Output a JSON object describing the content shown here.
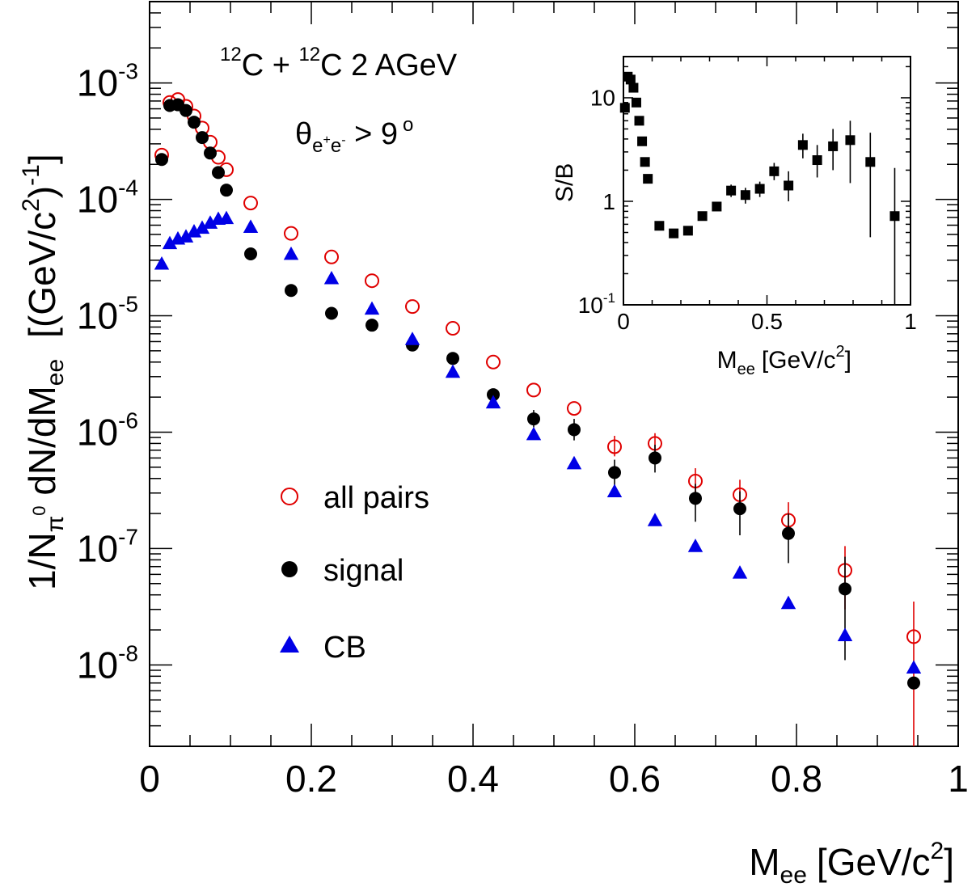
{
  "chart_data": [
    {
      "type": "scatter",
      "xlabel_main": "M",
      "xlabel_sub": "ee",
      "xlabel_unit": "[GeV/c",
      "xlabel_sup": "2",
      "xlabel_end": "]",
      "ylabel_prefix": "1/N",
      "ylabel_sub1": "π",
      "ylabel_sup1": "0",
      "ylabel_mid": " dN/dM",
      "ylabel_sub2": "ee",
      "ylabel_unit": "[(GeV/c",
      "ylabel_sup2": "2",
      "ylabel_unit_mid": ")",
      "ylabel_sup3": "-1",
      "ylabel_end": "]",
      "xlim": [
        0,
        1
      ],
      "ylim": [
        2e-09,
        0.005
      ],
      "yscale": "log",
      "x_ticks": [
        "0",
        "0.2",
        "0.4",
        "0.6",
        "0.8",
        "1"
      ],
      "y_ticks": [
        {
          "base": "10",
          "exp": "-3",
          "value": 0.001
        },
        {
          "base": "10",
          "exp": "-4",
          "value": 0.0001
        },
        {
          "base": "10",
          "exp": "-5",
          "value": 1e-05
        },
        {
          "base": "10",
          "exp": "-6",
          "value": 1e-06
        },
        {
          "base": "10",
          "exp": "-7",
          "value": 1e-07
        },
        {
          "base": "10",
          "exp": "-8",
          "value": 1e-08
        }
      ],
      "annotation": {
        "sup_a": "12",
        "text_a": "C + ",
        "sup_b": "12",
        "text_b": "C  2 AGeV",
        "theta": "θ",
        "theta_sub": "e",
        "theta_sub_sup1": "+",
        "theta_sub_e": "e",
        "theta_sub_sup2": "-",
        "theta_rest": " > 9",
        "theta_deg": "o"
      },
      "legend": [
        {
          "label": "all pairs",
          "marker": "open-circle",
          "color": "#e00000"
        },
        {
          "label": "signal",
          "marker": "filled-circle",
          "color": "#000000"
        },
        {
          "label": "CB",
          "marker": "filled-triangle",
          "color": "#0000e6"
        }
      ],
      "series": [
        {
          "name": "all pairs",
          "marker": "open-circle",
          "color": "#e00000",
          "points": [
            {
              "x": 0.015,
              "y": 0.00024
            },
            {
              "x": 0.025,
              "y": 0.00068
            },
            {
              "x": 0.035,
              "y": 0.00072
            },
            {
              "x": 0.045,
              "y": 0.00063
            },
            {
              "x": 0.055,
              "y": 0.00052
            },
            {
              "x": 0.065,
              "y": 0.00041
            },
            {
              "x": 0.075,
              "y": 0.00031
            },
            {
              "x": 0.085,
              "y": 0.00023
            },
            {
              "x": 0.095,
              "y": 0.00018
            },
            {
              "x": 0.125,
              "y": 9.3e-05
            },
            {
              "x": 0.175,
              "y": 5.1e-05
            },
            {
              "x": 0.225,
              "y": 3.2e-05
            },
            {
              "x": 0.275,
              "y": 2e-05
            },
            {
              "x": 0.325,
              "y": 1.2e-05
            },
            {
              "x": 0.375,
              "y": 7.8e-06
            },
            {
              "x": 0.425,
              "y": 4e-06
            },
            {
              "x": 0.475,
              "y": 2.3e-06
            },
            {
              "x": 0.525,
              "y": 1.6e-06
            },
            {
              "x": 0.575,
              "y": 7.5e-07,
              "ylo": 6.2e-07,
              "yhi": 9.3e-07
            },
            {
              "x": 0.625,
              "y": 8e-07,
              "ylo": 6.6e-07,
              "yhi": 9.8e-07
            },
            {
              "x": 0.675,
              "y": 3.8e-07,
              "ylo": 2.9e-07,
              "yhi": 4.9e-07
            },
            {
              "x": 0.73,
              "y": 2.9e-07,
              "ylo": 2.1e-07,
              "yhi": 3.9e-07
            },
            {
              "x": 0.79,
              "y": 1.75e-07,
              "ylo": 1.2e-07,
              "yhi": 2.5e-07
            },
            {
              "x": 0.86,
              "y": 6.5e-08,
              "ylo": 3e-08,
              "yhi": 1.05e-07
            },
            {
              "x": 0.945,
              "y": 1.75e-08,
              "ylo": 2e-09,
              "yhi": 3.5e-08
            }
          ]
        },
        {
          "name": "signal",
          "marker": "filled-circle",
          "color": "#000000",
          "points": [
            {
              "x": 0.015,
              "y": 0.00022
            },
            {
              "x": 0.025,
              "y": 0.00064
            },
            {
              "x": 0.035,
              "y": 0.00065
            },
            {
              "x": 0.045,
              "y": 0.00058
            },
            {
              "x": 0.055,
              "y": 0.00046
            },
            {
              "x": 0.065,
              "y": 0.00034
            },
            {
              "x": 0.075,
              "y": 0.00025
            },
            {
              "x": 0.085,
              "y": 0.00017
            },
            {
              "x": 0.095,
              "y": 0.00012
            },
            {
              "x": 0.125,
              "y": 3.4e-05
            },
            {
              "x": 0.175,
              "y": 1.65e-05
            },
            {
              "x": 0.225,
              "y": 1.05e-05
            },
            {
              "x": 0.275,
              "y": 8.3e-06
            },
            {
              "x": 0.325,
              "y": 5.6e-06
            },
            {
              "x": 0.375,
              "y": 4.3e-06
            },
            {
              "x": 0.425,
              "y": 2.1e-06
            },
            {
              "x": 0.475,
              "y": 1.3e-06,
              "ylo": 1.1e-06,
              "yhi": 1.55e-06
            },
            {
              "x": 0.525,
              "y": 1.05e-06,
              "ylo": 8.5e-07,
              "yhi": 1.3e-06
            },
            {
              "x": 0.575,
              "y": 4.5e-07,
              "ylo": 3.4e-07,
              "yhi": 5.8e-07
            },
            {
              "x": 0.625,
              "y": 6e-07,
              "ylo": 4.5e-07,
              "yhi": 7.8e-07
            },
            {
              "x": 0.675,
              "y": 2.7e-07,
              "ylo": 1.7e-07,
              "yhi": 3.6e-07
            },
            {
              "x": 0.73,
              "y": 2.2e-07,
              "ylo": 1.3e-07,
              "yhi": 3.1e-07
            },
            {
              "x": 0.79,
              "y": 1.35e-07,
              "ylo": 7.5e-08,
              "yhi": 2e-07
            },
            {
              "x": 0.86,
              "y": 4.5e-08,
              "ylo": 1.1e-08,
              "yhi": 8.5e-08
            },
            {
              "x": 0.945,
              "y": 7e-09
            }
          ]
        },
        {
          "name": "CB",
          "marker": "filled-triangle",
          "color": "#0000e6",
          "points": [
            {
              "x": 0.015,
              "y": 2.8e-05
            },
            {
              "x": 0.025,
              "y": 4.2e-05
            },
            {
              "x": 0.035,
              "y": 4.6e-05
            },
            {
              "x": 0.045,
              "y": 4.8e-05
            },
            {
              "x": 0.055,
              "y": 5.3e-05
            },
            {
              "x": 0.065,
              "y": 5.7e-05
            },
            {
              "x": 0.075,
              "y": 6.3e-05
            },
            {
              "x": 0.085,
              "y": 6.8e-05
            },
            {
              "x": 0.095,
              "y": 6.9e-05
            },
            {
              "x": 0.125,
              "y": 5.8e-05
            },
            {
              "x": 0.175,
              "y": 3.4e-05
            },
            {
              "x": 0.225,
              "y": 2.1e-05
            },
            {
              "x": 0.275,
              "y": 1.15e-05
            },
            {
              "x": 0.325,
              "y": 6.3e-06
            },
            {
              "x": 0.375,
              "y": 3.3e-06
            },
            {
              "x": 0.425,
              "y": 1.8e-06
            },
            {
              "x": 0.475,
              "y": 9.6e-07
            },
            {
              "x": 0.525,
              "y": 5.4e-07
            },
            {
              "x": 0.575,
              "y": 3.1e-07
            },
            {
              "x": 0.625,
              "y": 1.75e-07
            },
            {
              "x": 0.675,
              "y": 1.05e-07
            },
            {
              "x": 0.73,
              "y": 6.2e-08
            },
            {
              "x": 0.79,
              "y": 3.4e-08
            },
            {
              "x": 0.86,
              "y": 1.8e-08
            },
            {
              "x": 0.945,
              "y": 9.5e-09
            }
          ]
        }
      ]
    },
    {
      "type": "scatter",
      "xlabel_main": "M",
      "xlabel_sub": "ee",
      "xlabel_unit": "[GeV/c",
      "xlabel_sup": "2",
      "xlabel_end": "]",
      "ylabel": "S/B",
      "xlim": [
        0,
        1
      ],
      "ylim": [
        0.1,
        25
      ],
      "yscale": "log",
      "x_ticks": [
        "0",
        "0.5",
        "1"
      ],
      "y_ticks": [
        {
          "label": "10",
          "value": 10
        },
        {
          "label": "1",
          "value": 1
        },
        {
          "base": "10",
          "exp": "-1",
          "value": 0.1
        }
      ],
      "series": [
        {
          "name": "S/B",
          "marker": "filled-square",
          "color": "#000000",
          "points": [
            {
              "x": 0.005,
              "y": 8.0
            },
            {
              "x": 0.015,
              "y": 16.0
            },
            {
              "x": 0.025,
              "y": 15.0
            },
            {
              "x": 0.035,
              "y": 12.5
            },
            {
              "x": 0.045,
              "y": 9.0
            },
            {
              "x": 0.055,
              "y": 6.0
            },
            {
              "x": 0.065,
              "y": 3.8
            },
            {
              "x": 0.075,
              "y": 2.4
            },
            {
              "x": 0.085,
              "y": 1.65
            },
            {
              "x": 0.125,
              "y": 0.58
            },
            {
              "x": 0.175,
              "y": 0.49
            },
            {
              "x": 0.225,
              "y": 0.52
            },
            {
              "x": 0.275,
              "y": 0.72
            },
            {
              "x": 0.325,
              "y": 0.89
            },
            {
              "x": 0.375,
              "y": 1.27,
              "ylo": 1.1,
              "yhi": 1.45
            },
            {
              "x": 0.425,
              "y": 1.15,
              "ylo": 0.95,
              "yhi": 1.35
            },
            {
              "x": 0.475,
              "y": 1.32,
              "ylo": 1.1,
              "yhi": 1.55
            },
            {
              "x": 0.525,
              "y": 1.95,
              "ylo": 1.6,
              "yhi": 2.35
            },
            {
              "x": 0.575,
              "y": 1.42,
              "ylo": 1.0,
              "yhi": 1.95
            },
            {
              "x": 0.625,
              "y": 3.5,
              "ylo": 2.6,
              "yhi": 4.5
            },
            {
              "x": 0.675,
              "y": 2.5,
              "ylo": 1.7,
              "yhi": 3.5
            },
            {
              "x": 0.73,
              "y": 3.4,
              "ylo": 2.0,
              "yhi": 5.0
            },
            {
              "x": 0.79,
              "y": 3.9,
              "ylo": 1.5,
              "yhi": 6.0
            },
            {
              "x": 0.86,
              "y": 2.4,
              "ylo": 0.45,
              "yhi": 4.6
            },
            {
              "x": 0.945,
              "y": 0.72,
              "ylo": 0.1,
              "yhi": 2.1
            }
          ]
        }
      ]
    }
  ]
}
